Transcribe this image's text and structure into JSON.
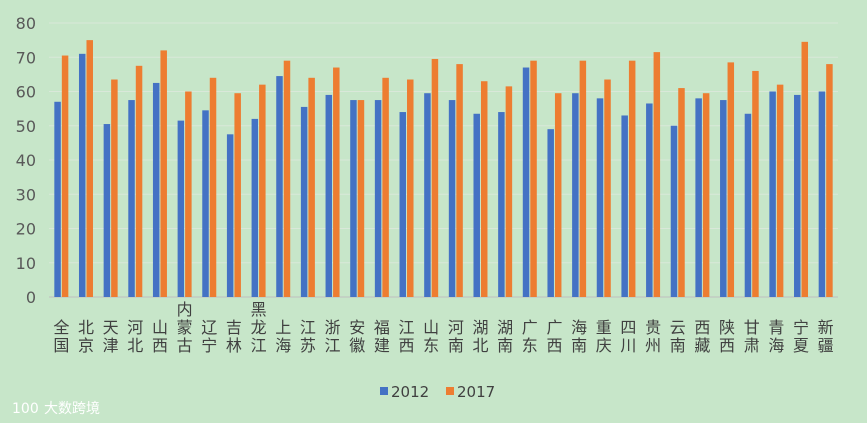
{
  "chart_data": {
    "type": "bar",
    "title": "",
    "xlabel": "",
    "ylabel": "",
    "ylim": [
      0,
      80
    ],
    "yticks": [
      0,
      10,
      20,
      30,
      40,
      50,
      60,
      70,
      80
    ],
    "grid": true,
    "legend_position": "bottom",
    "categories": [
      "全国",
      "北京",
      "天津",
      "河北",
      "山西",
      "内蒙古",
      "辽宁",
      "吉林",
      "黑龙江",
      "上海",
      "江苏",
      "浙江",
      "安徽",
      "福建",
      "江西",
      "山东",
      "河南",
      "湖北",
      "湖南",
      "广东",
      "广西",
      "海南",
      "重庆",
      "四川",
      "贵州",
      "云南",
      "西藏",
      "陕西",
      "甘肃",
      "青海",
      "宁夏",
      "新疆"
    ],
    "series": [
      {
        "name": "2012",
        "color": "#4472c4",
        "values": [
          57,
          71,
          50.5,
          57.5,
          62.5,
          51.5,
          54.5,
          47.5,
          52,
          64.5,
          55.5,
          59,
          57.5,
          57.5,
          54,
          59.5,
          57.5,
          53.5,
          54,
          67,
          49,
          59.5,
          58,
          53,
          56.5,
          50,
          58,
          57.5,
          53.5,
          60,
          59,
          60
        ]
      },
      {
        "name": "2017",
        "color": "#ed7d31",
        "values": [
          70.5,
          75,
          63.5,
          67.5,
          72,
          60,
          64,
          59.5,
          62,
          69,
          64,
          67,
          57.5,
          64,
          63.5,
          69.5,
          68,
          63,
          61.5,
          69,
          59.5,
          69,
          63.5,
          69,
          71.5,
          61,
          59.5,
          68.5,
          66,
          62,
          74.5,
          68
        ]
      }
    ]
  },
  "watermark": {
    "text": "大数跨境",
    "logo_text": "100"
  }
}
